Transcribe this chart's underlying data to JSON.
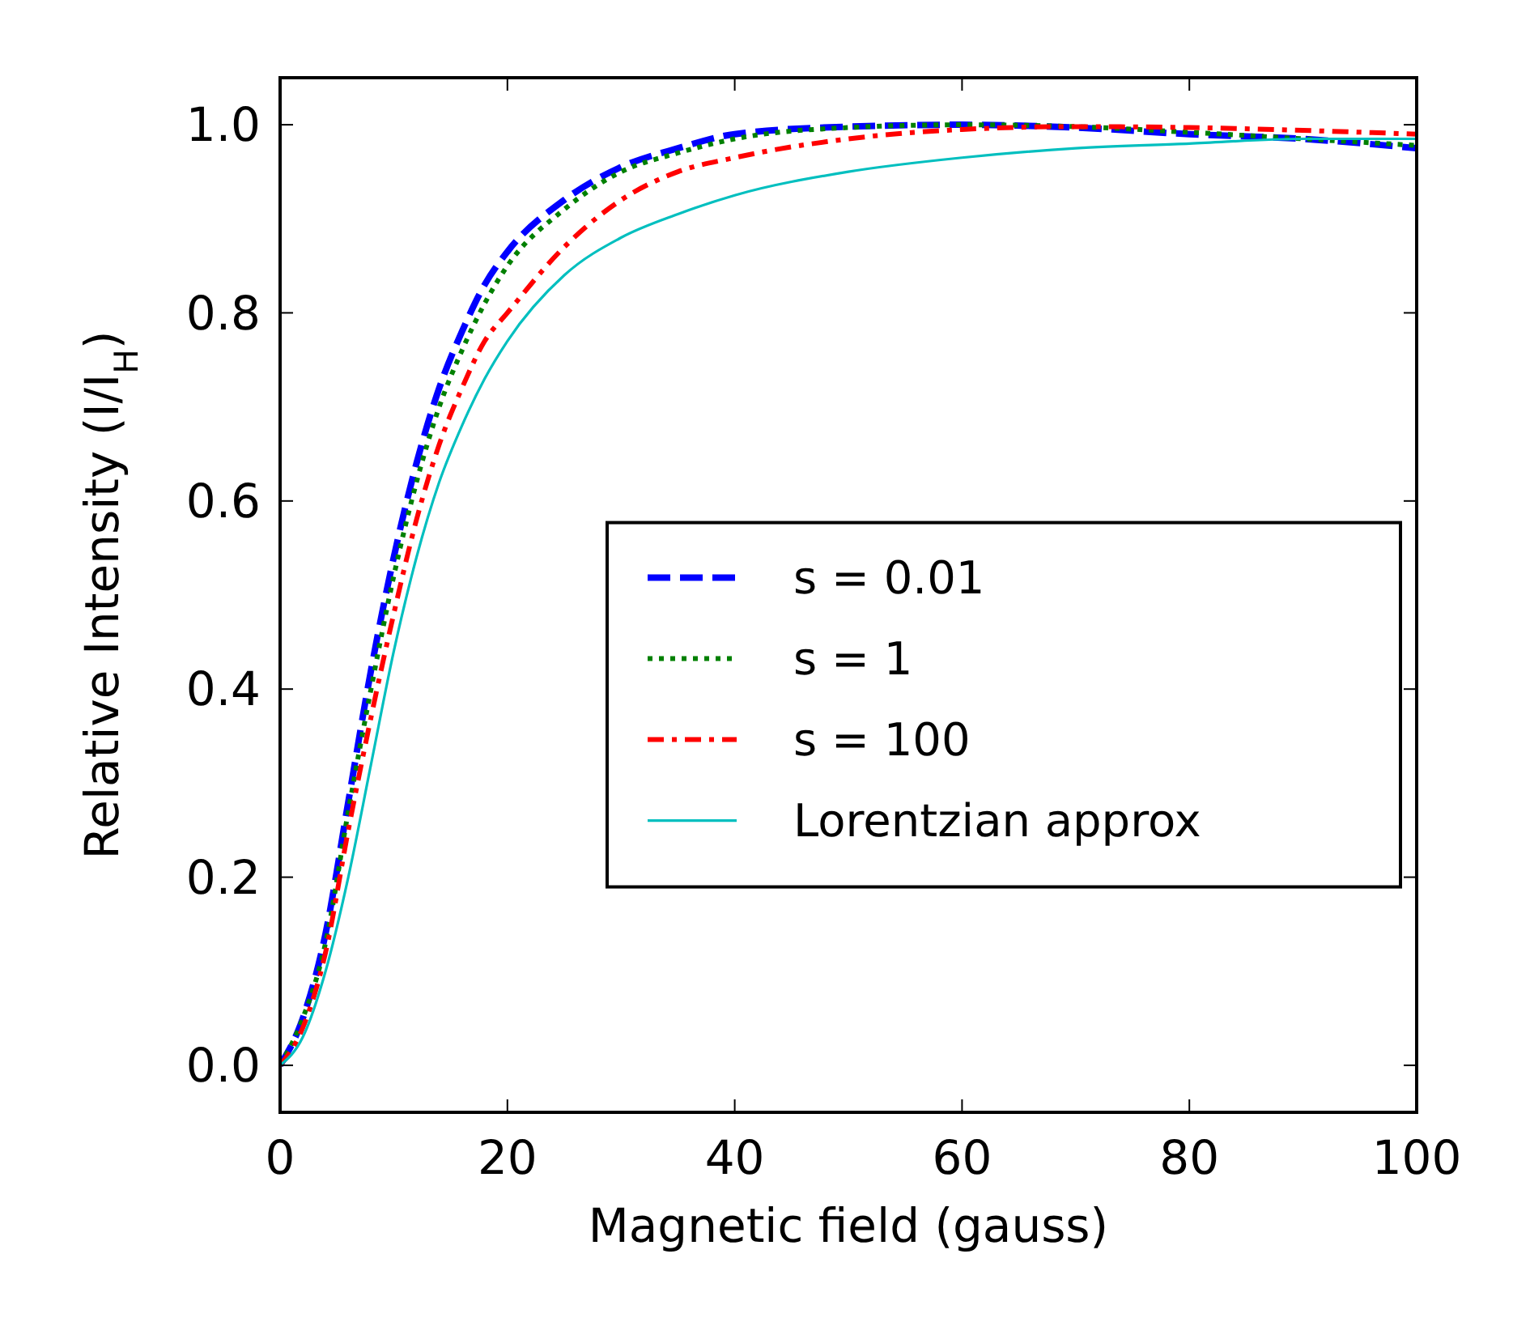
{
  "chart_data": {
    "type": "line",
    "xlabel": "Magnetic field (gauss)",
    "ylabel": "Relative Intensity (I/I$_{H}$)",
    "xlim": [
      0,
      100
    ],
    "ylim": [
      -0.05,
      1.05
    ],
    "xticks": [
      0,
      20,
      40,
      60,
      80,
      100
    ],
    "yticks": [
      {
        "value": 0,
        "label": "0.0"
      },
      {
        "value": 0.2,
        "label": "0.2"
      },
      {
        "value": 0.4,
        "label": "0.4"
      },
      {
        "value": 0.6,
        "label": "0.6"
      },
      {
        "value": 0.8,
        "label": "0.8"
      },
      {
        "value": 1,
        "label": "1.0"
      }
    ],
    "grid": false,
    "legend": "right",
    "x": [
      0,
      2,
      4,
      6,
      8,
      10,
      12,
      14,
      16,
      18,
      20,
      25,
      30,
      35,
      40,
      50,
      60,
      70,
      80,
      90,
      100
    ],
    "series": [
      {
        "name": "s = 0.01",
        "color": "#0000ff",
        "line_style": "dashed",
        "values": [
          0,
          0.05,
          0.14,
          0.28,
          0.42,
          0.54,
          0.64,
          0.72,
          0.78,
          0.83,
          0.865,
          0.92,
          0.955,
          0.975,
          0.99,
          0.998,
          1.0,
          0.997,
          0.99,
          0.985,
          0.975
        ]
      },
      {
        "name": "s = 1",
        "color": "#008000",
        "line_style": "dotted",
        "values": [
          0,
          0.05,
          0.13,
          0.27,
          0.4,
          0.52,
          0.62,
          0.7,
          0.76,
          0.81,
          0.85,
          0.91,
          0.95,
          0.97,
          0.985,
          0.997,
          1.0,
          0.998,
          0.992,
          0.985,
          0.978
        ]
      },
      {
        "name": "s = 100",
        "color": "#ff0000",
        "line_style": "dashdot",
        "values": [
          0,
          0.04,
          0.12,
          0.25,
          0.37,
          0.48,
          0.58,
          0.66,
          0.72,
          0.77,
          0.8,
          0.87,
          0.92,
          0.95,
          0.965,
          0.985,
          0.995,
          0.998,
          0.997,
          0.994,
          0.99
        ]
      },
      {
        "name": "Lorentzian approx",
        "color": "#00bfbf",
        "line_style": "solid",
        "values": [
          0,
          0.03,
          0.1,
          0.2,
          0.32,
          0.44,
          0.54,
          0.62,
          0.68,
          0.73,
          0.77,
          0.84,
          0.88,
          0.905,
          0.925,
          0.95,
          0.965,
          0.975,
          0.98,
          0.985,
          0.985
        ]
      }
    ]
  }
}
